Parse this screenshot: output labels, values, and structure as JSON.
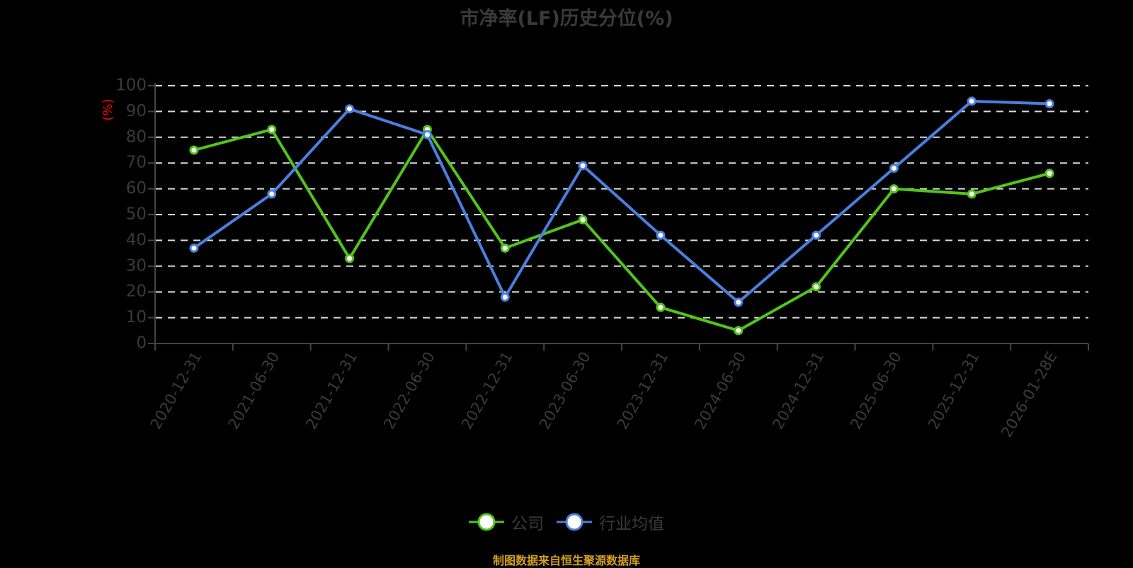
{
  "chart_data": {
    "type": "line",
    "title": "市净率(LF)历史分位(%)",
    "xlabel": "",
    "ylabel": "(%)",
    "ylim": [
      0,
      100
    ],
    "yticks": [
      0,
      10,
      20,
      30,
      40,
      50,
      60,
      70,
      80,
      90,
      100
    ],
    "grid": true,
    "legend_position": "bottom",
    "categories": [
      "2020-12-31",
      "2021-06-30",
      "2021-12-31",
      "2022-06-30",
      "2022-12-31",
      "2023-06-30",
      "2023-12-31",
      "2024-06-30",
      "2024-12-31",
      "2025-06-30",
      "2025-12-31",
      "2026-01-28E"
    ],
    "series": [
      {
        "name": "公司",
        "color": "#52c41a",
        "values": [
          75,
          83,
          33,
          83,
          37,
          48,
          14,
          5,
          22,
          60,
          58,
          66
        ]
      },
      {
        "name": "行业均值",
        "color": "#4a7fe0",
        "values": [
          37,
          58,
          91,
          81,
          18,
          69,
          42,
          16,
          42,
          68,
          94,
          93
        ]
      }
    ]
  },
  "title": "市净率(LF)历史分位(%)",
  "yaxis_unit": "(%)",
  "legend": [
    {
      "label": "公司",
      "color": "#52c41a"
    },
    {
      "label": "行业均值",
      "color": "#4a7fe0"
    }
  ],
  "footer": "制图数据来自恒生聚源数据库",
  "colors": {
    "axis_text": "#3a3a3a",
    "grid": "#d9d9d9",
    "unit_label": "#ff0000",
    "footer": "#d4a020"
  }
}
